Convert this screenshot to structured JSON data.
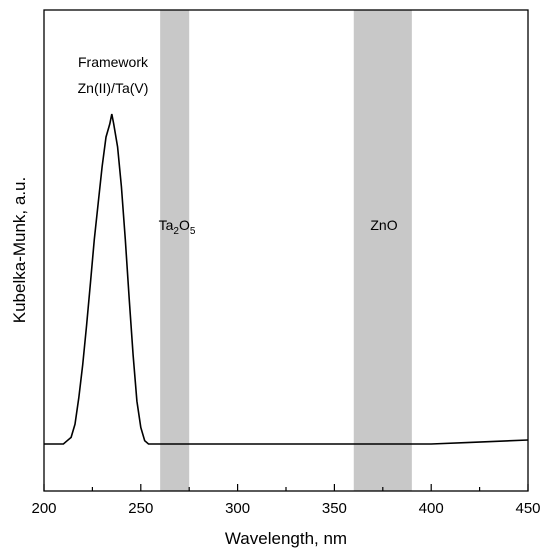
{
  "chart_data": {
    "type": "line",
    "xlabel": "Wavelength, nm",
    "ylabel": "Kubelka-Munk, a.u.",
    "xlim": [
      200,
      450
    ],
    "xticks": [
      200,
      250,
      300,
      350,
      400,
      450
    ],
    "y_ticks_shown": false,
    "grid": false,
    "series": [
      {
        "color": "#000000",
        "x": [
          200,
          205,
          210,
          212,
          214,
          216,
          218,
          220,
          222,
          224,
          226,
          228,
          230,
          232,
          234,
          235,
          236,
          238,
          240,
          242,
          244,
          246,
          248,
          250,
          252,
          254,
          256,
          260,
          280,
          300,
          350,
          400,
          420,
          450
        ],
        "y": [
          0.0,
          0.0,
          0.0,
          0.01,
          0.02,
          0.06,
          0.14,
          0.24,
          0.36,
          0.49,
          0.62,
          0.73,
          0.84,
          0.93,
          0.97,
          1.0,
          0.97,
          0.9,
          0.78,
          0.62,
          0.44,
          0.27,
          0.13,
          0.05,
          0.01,
          0.0,
          0.0,
          0.0,
          0.0,
          0.0,
          0.0,
          0.0,
          0.005,
          0.012
        ]
      }
    ],
    "bands": [
      {
        "x_start": 260,
        "x_end": 275,
        "label_main": "Ta",
        "label_sub1": "2",
        "label_mid": "O",
        "label_sub2": "5",
        "color": "#c8c8c8"
      },
      {
        "x_start": 360,
        "x_end": 390,
        "label": "ZnO",
        "color": "#c8c8c8"
      }
    ],
    "annotation": {
      "line1": "Framework",
      "line2": "Zn(II)/Ta(V)"
    }
  }
}
